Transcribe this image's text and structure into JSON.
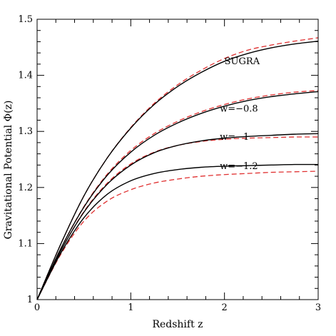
{
  "chart_data": {
    "type": "line",
    "xlabel": "Redshift z",
    "ylabel": "Gravitational Potential Φ(z)",
    "xlim": [
      0,
      3
    ],
    "ylim": [
      1.0,
      1.5
    ],
    "xticks": [
      {
        "value": 0,
        "label": "0"
      },
      {
        "value": 1,
        "label": "1"
      },
      {
        "value": 2,
        "label": "2"
      },
      {
        "value": 3,
        "label": "3"
      }
    ],
    "yticks": [
      {
        "value": 1.0,
        "label": "1"
      },
      {
        "value": 1.1,
        "label": "1.1"
      },
      {
        "value": 1.2,
        "label": "1.2"
      },
      {
        "value": 1.3,
        "label": "1.3"
      },
      {
        "value": 1.4,
        "label": "1.4"
      },
      {
        "value": 1.5,
        "label": "1.5"
      }
    ],
    "x": [
      0,
      0.25,
      0.5,
      0.75,
      1.0,
      1.25,
      1.5,
      1.75,
      2.0,
      2.25,
      2.5,
      2.75,
      3.0
    ],
    "series": [
      {
        "label": "SUGRA",
        "label_at": [
          2.0,
          1.42
        ],
        "color": "#000000",
        "style": "solid",
        "values": [
          1.0,
          1.098,
          1.185,
          1.253,
          1.306,
          1.348,
          1.38,
          1.405,
          1.425,
          1.439,
          1.449,
          1.456,
          1.461
        ]
      },
      {
        "label": "SUGRA",
        "color": "#e03030",
        "style": "dashed",
        "values": [
          1.0,
          1.098,
          1.185,
          1.253,
          1.307,
          1.35,
          1.383,
          1.409,
          1.43,
          1.445,
          1.454,
          1.461,
          1.467
        ]
      },
      {
        "label": "w=−0.8",
        "label_at": [
          1.95,
          1.335
        ],
        "color": "#000000",
        "style": "solid",
        "values": [
          1.0,
          1.09,
          1.165,
          1.222,
          1.263,
          1.293,
          1.315,
          1.332,
          1.345,
          1.355,
          1.362,
          1.367,
          1.371
        ]
      },
      {
        "label": "w=−0.8",
        "color": "#e03030",
        "style": "dashed",
        "values": [
          1.0,
          1.09,
          1.166,
          1.224,
          1.266,
          1.296,
          1.318,
          1.335,
          1.348,
          1.358,
          1.365,
          1.37,
          1.373
        ]
      },
      {
        "label": "w=−1",
        "label_at": [
          1.95,
          1.285
        ],
        "color": "#000000",
        "style": "solid",
        "values": [
          1.0,
          1.086,
          1.156,
          1.206,
          1.24,
          1.262,
          1.275,
          1.283,
          1.288,
          1.291,
          1.293,
          1.295,
          1.296
        ]
      },
      {
        "label": "w=−1",
        "color": "#e03030",
        "style": "dashed",
        "values": [
          1.0,
          1.086,
          1.157,
          1.208,
          1.242,
          1.263,
          1.275,
          1.282,
          1.286,
          1.288,
          1.289,
          1.29,
          1.29
        ]
      },
      {
        "label": "w=−1.2",
        "label_at": [
          1.95,
          1.233
        ],
        "color": "#000000",
        "style": "solid",
        "values": [
          1.0,
          1.082,
          1.146,
          1.188,
          1.212,
          1.225,
          1.232,
          1.236,
          1.238,
          1.239,
          1.24,
          1.241,
          1.241
        ]
      },
      {
        "label": "w=−1.2",
        "color": "#e03030",
        "style": "dashed",
        "values": [
          1.0,
          1.08,
          1.14,
          1.176,
          1.196,
          1.208,
          1.215,
          1.22,
          1.223,
          1.225,
          1.227,
          1.228,
          1.229
        ]
      }
    ]
  }
}
